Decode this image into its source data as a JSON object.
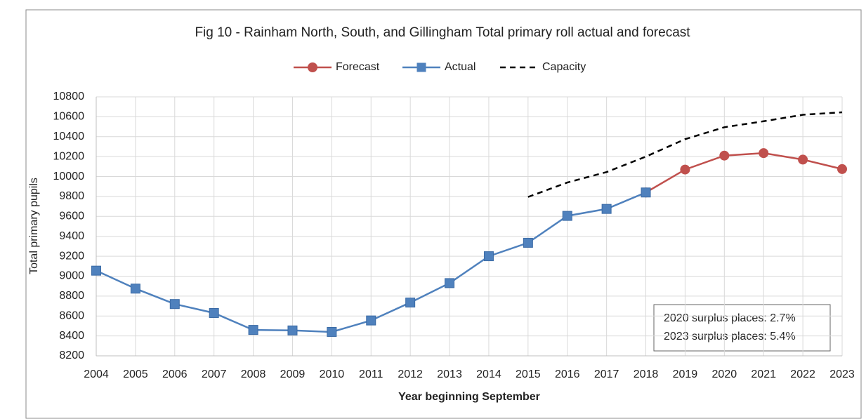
{
  "chart_data": {
    "type": "line",
    "title": "Fig 10 - Rainham North, South, and Gillingham Total primary roll actual and forecast",
    "x_label": "Year beginning September",
    "y_label": "Total primary pupils",
    "categories": [
      "2004",
      "2005",
      "2006",
      "2007",
      "2008",
      "2009",
      "2010",
      "2011",
      "2012",
      "2013",
      "2014",
      "2015",
      "2016",
      "2017",
      "2018",
      "2019",
      "2020",
      "2021",
      "2022",
      "2023"
    ],
    "series": [
      {
        "name": "Forecast",
        "color": "#c0504d",
        "marker": "circle",
        "line_style": "solid",
        "values": [
          null,
          null,
          null,
          null,
          null,
          null,
          null,
          null,
          null,
          null,
          null,
          null,
          null,
          null,
          9840,
          10070,
          10210,
          10235,
          10170,
          10075
        ]
      },
      {
        "name": "Actual",
        "color": "#4f81bd",
        "marker": "square",
        "line_style": "solid",
        "values": [
          9055,
          8875,
          8720,
          8630,
          8460,
          8455,
          8440,
          8555,
          8735,
          8930,
          9200,
          9335,
          9605,
          9675,
          9840,
          null,
          null,
          null,
          null,
          null
        ]
      },
      {
        "name": "Capacity",
        "color": "#000000",
        "marker": "none",
        "line_style": "dashed",
        "values": [
          null,
          null,
          null,
          null,
          null,
          null,
          null,
          null,
          null,
          null,
          null,
          9795,
          9940,
          10045,
          10200,
          10375,
          10495,
          10555,
          10620,
          10645
        ]
      }
    ],
    "ylim": [
      8200,
      10800
    ],
    "yticks": [
      8200,
      8400,
      8600,
      8800,
      9000,
      9200,
      9400,
      9600,
      9800,
      10000,
      10200,
      10400,
      10600,
      10800
    ],
    "grid": true,
    "legend": "top",
    "annotations": [
      "2020 surplus places: 2.7%",
      "2023 surplus places: 5.4%"
    ]
  }
}
